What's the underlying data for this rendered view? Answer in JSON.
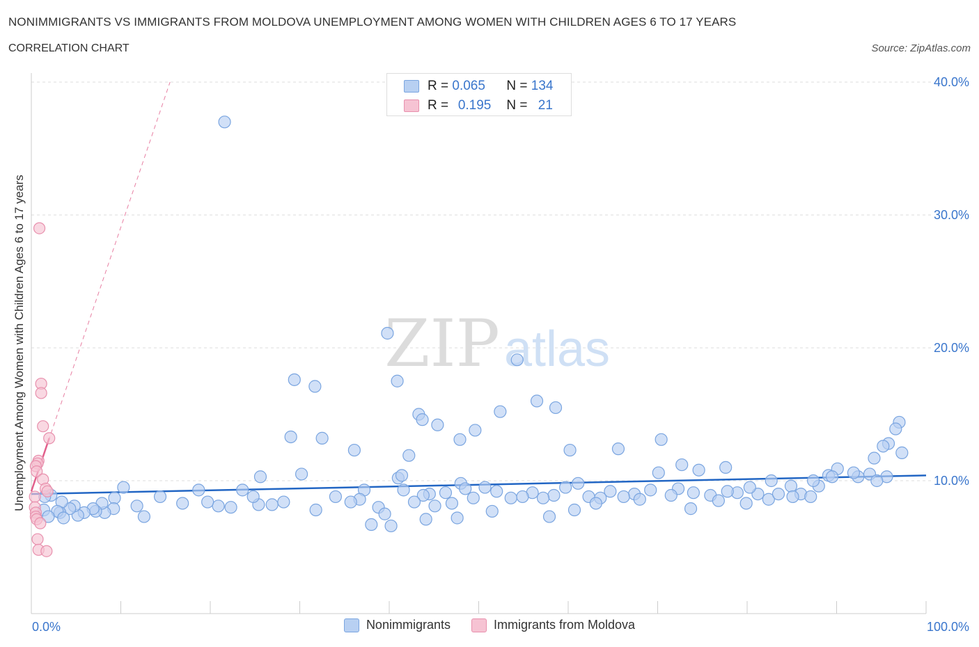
{
  "header": {
    "title": "NONIMMIGRANTS VS IMMIGRANTS FROM MOLDOVA UNEMPLOYMENT AMONG WOMEN WITH CHILDREN AGES 6 TO 17 YEARS",
    "subtitle": "CORRELATION CHART",
    "source": "Source: ZipAtlas.com"
  },
  "watermark": {
    "zip": "ZIP",
    "atlas": "atlas"
  },
  "legend_box": {
    "rows": [
      {
        "r_label": "R = ",
        "r_value": "0.065",
        "n_label": "N = ",
        "n_value": "134"
      },
      {
        "r_label": "R = ",
        "r_value": "0.195",
        "n_label": "N = ",
        "n_value": "21"
      }
    ]
  },
  "colors": {
    "blue_fill": "#b8d0f2",
    "blue_stroke": "#7aa5e0",
    "blue_line": "#2266c4",
    "pink_fill": "#f6c3d3",
    "pink_stroke": "#e890ad",
    "pink_line": "#e2608c",
    "axis_text": "#3a76cc",
    "grid": "#dddddd"
  },
  "chart_data": {
    "type": "scatter",
    "title": "NONIMMIGRANTS VS IMMIGRANTS FROM MOLDOVA UNEMPLOYMENT AMONG WOMEN WITH CHILDREN AGES 6 TO 17 YEARS",
    "subtitle": "CORRELATION CHART",
    "xlabel": "",
    "ylabel": "Unemployment Among Women with Children Ages 6 to 17 years",
    "xlim": [
      0,
      100
    ],
    "ylim": [
      0,
      40
    ],
    "x_tick_labels": [
      "0.0%",
      "100.0%"
    ],
    "y_ticks": [
      10,
      20,
      30,
      40
    ],
    "y_tick_labels": [
      "10.0%",
      "20.0%",
      "30.0%",
      "40.0%"
    ],
    "grid": true,
    "legend": "bottom-center",
    "series": [
      {
        "name": "Nonimmigrants",
        "R": 0.065,
        "N": 134,
        "trend": {
          "x": [
            0,
            100
          ],
          "y": [
            9.0,
            10.4
          ]
        },
        "points": [
          [
            21.6,
            37.0
          ],
          [
            39.8,
            21.1
          ],
          [
            40.9,
            17.5
          ],
          [
            54.3,
            19.1
          ],
          [
            29.4,
            17.6
          ],
          [
            31.7,
            17.1
          ],
          [
            43.3,
            15.0
          ],
          [
            45.4,
            14.2
          ],
          [
            52.4,
            15.2
          ],
          [
            56.5,
            16.0
          ],
          [
            58.6,
            15.5
          ],
          [
            43.7,
            14.6
          ],
          [
            32.5,
            13.2
          ],
          [
            36.1,
            12.3
          ],
          [
            47.9,
            13.1
          ],
          [
            49.6,
            13.8
          ],
          [
            60.2,
            12.3
          ],
          [
            65.6,
            12.4
          ],
          [
            70.4,
            13.1
          ],
          [
            29.0,
            13.3
          ],
          [
            42.2,
            11.9
          ],
          [
            30.2,
            10.5
          ],
          [
            25.6,
            10.3
          ],
          [
            41.0,
            10.2
          ],
          [
            41.4,
            10.4
          ],
          [
            48.0,
            9.8
          ],
          [
            70.1,
            10.6
          ],
          [
            74.6,
            10.8
          ],
          [
            72.7,
            11.2
          ],
          [
            77.6,
            11.0
          ],
          [
            82.7,
            10.0
          ],
          [
            97.0,
            14.4
          ],
          [
            96.6,
            13.9
          ],
          [
            95.8,
            12.8
          ],
          [
            95.2,
            12.6
          ],
          [
            94.2,
            11.7
          ],
          [
            95.6,
            10.3
          ],
          [
            93.7,
            10.5
          ],
          [
            92.4,
            10.3
          ],
          [
            91.9,
            10.6
          ],
          [
            90.1,
            10.9
          ],
          [
            88.0,
            9.6
          ],
          [
            87.4,
            10.0
          ],
          [
            89.1,
            10.4
          ],
          [
            84.9,
            9.6
          ],
          [
            86.0,
            9.0
          ],
          [
            85.1,
            8.8
          ],
          [
            82.4,
            8.6
          ],
          [
            81.2,
            9.0
          ],
          [
            80.3,
            9.5
          ],
          [
            78.9,
            9.1
          ],
          [
            77.8,
            9.2
          ],
          [
            75.9,
            8.9
          ],
          [
            74.0,
            9.1
          ],
          [
            72.3,
            9.4
          ],
          [
            71.5,
            8.9
          ],
          [
            69.2,
            9.3
          ],
          [
            67.4,
            9.0
          ],
          [
            66.2,
            8.8
          ],
          [
            64.7,
            9.2
          ],
          [
            63.6,
            8.7
          ],
          [
            62.3,
            8.8
          ],
          [
            61.1,
            9.8
          ],
          [
            59.7,
            9.5
          ],
          [
            58.4,
            8.9
          ],
          [
            57.2,
            8.7
          ],
          [
            56.0,
            9.1
          ],
          [
            54.9,
            8.8
          ],
          [
            53.6,
            8.7
          ],
          [
            52.0,
            9.2
          ],
          [
            50.7,
            9.5
          ],
          [
            49.4,
            8.7
          ],
          [
            48.5,
            9.4
          ],
          [
            47.0,
            8.3
          ],
          [
            46.3,
            9.1
          ],
          [
            45.1,
            8.1
          ],
          [
            44.5,
            9.0
          ],
          [
            43.8,
            8.9
          ],
          [
            42.8,
            8.4
          ],
          [
            41.6,
            9.3
          ],
          [
            38.8,
            8.0
          ],
          [
            37.2,
            9.3
          ],
          [
            36.7,
            8.6
          ],
          [
            35.7,
            8.4
          ],
          [
            34.0,
            8.8
          ],
          [
            31.8,
            7.8
          ],
          [
            28.2,
            8.4
          ],
          [
            26.9,
            8.2
          ],
          [
            25.4,
            8.2
          ],
          [
            24.8,
            8.8
          ],
          [
            23.6,
            9.3
          ],
          [
            22.3,
            8.0
          ],
          [
            20.9,
            8.1
          ],
          [
            19.7,
            8.4
          ],
          [
            18.7,
            9.3
          ],
          [
            16.9,
            8.3
          ],
          [
            14.4,
            8.8
          ],
          [
            12.6,
            7.3
          ],
          [
            11.8,
            8.1
          ],
          [
            10.3,
            9.5
          ],
          [
            9.3,
            8.7
          ],
          [
            9.2,
            7.9
          ],
          [
            8.2,
            7.6
          ],
          [
            7.9,
            8.3
          ],
          [
            7.2,
            7.7
          ],
          [
            6.9,
            7.9
          ],
          [
            5.9,
            7.6
          ],
          [
            5.2,
            7.4
          ],
          [
            4.8,
            8.1
          ],
          [
            4.3,
            7.9
          ],
          [
            3.4,
            8.4
          ],
          [
            3.2,
            7.6
          ],
          [
            2.9,
            7.7
          ],
          [
            2.2,
            8.9
          ],
          [
            1.5,
            8.8
          ],
          [
            1.4,
            7.8
          ],
          [
            3.6,
            7.2
          ],
          [
            1.9,
            7.3
          ],
          [
            97.3,
            12.1
          ],
          [
            94.5,
            10.0
          ],
          [
            89.5,
            10.3
          ],
          [
            87.1,
            8.8
          ],
          [
            83.5,
            9.0
          ],
          [
            79.9,
            8.3
          ],
          [
            76.8,
            8.5
          ],
          [
            73.7,
            7.9
          ],
          [
            68.0,
            8.6
          ],
          [
            63.1,
            8.3
          ],
          [
            60.7,
            7.8
          ],
          [
            57.9,
            7.3
          ],
          [
            51.5,
            7.7
          ],
          [
            47.6,
            7.2
          ],
          [
            44.1,
            7.1
          ],
          [
            40.2,
            6.6
          ],
          [
            39.5,
            7.5
          ],
          [
            38.0,
            6.7
          ]
        ]
      },
      {
        "name": "Immigrants from Moldova",
        "R": 0.195,
        "N": 21,
        "trend": {
          "x": [
            0,
            2.0
          ],
          "y": [
            9.2,
            13.2
          ]
        },
        "trend_extended": {
          "x": [
            0,
            15.5
          ],
          "y": [
            9.2,
            40.0
          ]
        },
        "points": [
          [
            0.9,
            29.0
          ],
          [
            1.1,
            17.3
          ],
          [
            1.1,
            16.6
          ],
          [
            1.3,
            14.1
          ],
          [
            2.0,
            13.2
          ],
          [
            0.8,
            11.5
          ],
          [
            0.7,
            11.3
          ],
          [
            0.5,
            11.1
          ],
          [
            0.6,
            10.7
          ],
          [
            1.3,
            10.1
          ],
          [
            1.6,
            9.4
          ],
          [
            1.8,
            9.2
          ],
          [
            0.4,
            8.8
          ],
          [
            0.4,
            8.0
          ],
          [
            0.5,
            7.6
          ],
          [
            0.5,
            7.3
          ],
          [
            0.6,
            7.1
          ],
          [
            1.0,
            6.8
          ],
          [
            0.7,
            5.6
          ],
          [
            0.8,
            4.8
          ],
          [
            1.7,
            4.7
          ]
        ]
      }
    ]
  },
  "bottom_legend": {
    "items": [
      "Nonimmigrants",
      "Immigrants from Moldova"
    ]
  }
}
